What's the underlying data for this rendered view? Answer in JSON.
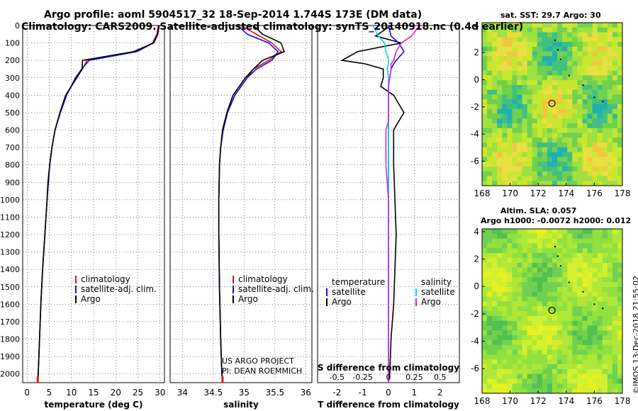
{
  "header": {
    "line1": "Argo profile: aoml 5904517_32 18-Sep-2014 1.744S 173E (DM data)",
    "line2": "Climatology: CARS2009. Satellite-adjusted climatology: synTS_20140918.nc (0.4d earlier)"
  },
  "credit": {
    "line1": "US ARGO PROJECT",
    "line2": "PI: DEAN ROEMMICH"
  },
  "timestamp": "©IMOS 13-Dec-2018 21:55:02",
  "colors": {
    "argo": "#000000",
    "climatology": "#e01010",
    "satellite": "#1010e0",
    "salinity_diff": "#00e0e0",
    "salinity_sat_diff": "#e020e0"
  },
  "chart_data": [
    {
      "type": "line",
      "id": "temperature",
      "xlabel": "temperature (deg C)",
      "ylim": [
        2050,
        0
      ],
      "xlim": [
        -1,
        31
      ],
      "xticks": [
        0,
        5,
        10,
        15,
        20,
        25,
        30
      ],
      "yticks": [
        0,
        100,
        200,
        300,
        400,
        500,
        600,
        700,
        800,
        900,
        1000,
        1100,
        1200,
        1300,
        1400,
        1500,
        1600,
        1700,
        1800,
        1900,
        2000
      ],
      "depth": [
        0,
        50,
        100,
        150,
        200,
        250,
        300,
        400,
        500,
        600,
        700,
        800,
        900,
        1000,
        1200,
        1400,
        1600,
        1800,
        2000,
        2050
      ],
      "series": [
        {
          "name": "climatology",
          "color": "#e01010",
          "values": [
            29.6,
            29.3,
            28.3,
            24.5,
            13.5,
            12.5,
            11.0,
            8.9,
            7.5,
            6.3,
            5.6,
            5.1,
            4.8,
            4.5,
            4.0,
            3.5,
            3.1,
            2.8,
            2.5,
            2.4
          ]
        },
        {
          "name": "satellite-adj. clim.",
          "color": "#1010e0",
          "values": [
            29.7,
            29.4,
            28.5,
            24.8,
            14.0,
            12.3,
            10.9,
            8.9,
            7.5,
            6.3,
            5.6,
            5.1,
            4.8,
            4.5,
            4.0,
            3.5,
            3.1,
            2.8,
            2.5,
            2.4
          ]
        },
        {
          "name": "Argo",
          "color": "#000000",
          "values": [
            29.8,
            29.5,
            28.6,
            24.0,
            12.5,
            12.4,
            11.2,
            8.7,
            7.4,
            6.3,
            5.6,
            5.1,
            4.7,
            4.5,
            4.0,
            3.5,
            3.1,
            2.8,
            2.5,
            2.4
          ]
        }
      ],
      "legend": [
        "climatology",
        "satellite-adj. clim.",
        "Argo"
      ]
    },
    {
      "type": "line",
      "id": "salinity",
      "xlabel": "salinity",
      "ylim": [
        2050,
        0
      ],
      "xlim": [
        33.8,
        36.1
      ],
      "xticks": [
        34,
        34.5,
        35,
        35.5,
        36
      ],
      "depth": [
        0,
        50,
        100,
        150,
        200,
        250,
        300,
        400,
        500,
        600,
        700,
        800,
        1000,
        1200,
        1500,
        1800,
        2000,
        2050
      ],
      "series": [
        {
          "name": "climatology",
          "color": "#e01010",
          "values": [
            34.95,
            35.2,
            35.45,
            35.6,
            35.4,
            35.15,
            35.05,
            34.85,
            34.73,
            34.66,
            34.62,
            34.6,
            34.59,
            34.59,
            34.6,
            34.62,
            34.64,
            34.65
          ]
        },
        {
          "name": "satellite-adj. clim.",
          "color": "#1010e0",
          "values": [
            34.9,
            35.05,
            35.4,
            35.55,
            35.45,
            35.2,
            35.05,
            34.85,
            34.73,
            34.66,
            34.62,
            34.6,
            34.59,
            34.59,
            34.6,
            34.62,
            34.64,
            34.65
          ]
        },
        {
          "name": "Argo",
          "color": "#000000",
          "values": [
            35.15,
            35.3,
            35.6,
            35.65,
            35.3,
            35.15,
            35.02,
            34.82,
            34.72,
            34.65,
            34.62,
            34.6,
            34.59,
            34.59,
            34.6,
            34.62,
            34.64,
            34.65
          ]
        }
      ],
      "legend": [
        "climatology",
        "satellite-adj. clim.",
        "Argo"
      ]
    },
    {
      "type": "line",
      "id": "differences",
      "xlabel": "T difference from climatology",
      "xlabel2": "S difference from climatology",
      "ylim": [
        2050,
        0
      ],
      "xlim": [
        -2.75,
        2.75
      ],
      "xticks": [
        -2,
        -1,
        0,
        1,
        2
      ],
      "xticks2": [
        -0.5,
        -0.25,
        0,
        0.25,
        0.5
      ],
      "xtick2_labels": [
        "-0.5",
        "-0.25",
        "0",
        "0.25",
        "0.5"
      ],
      "depth": [
        0,
        60,
        100,
        150,
        200,
        220,
        250,
        300,
        350,
        400,
        450,
        500,
        550,
        600,
        800,
        1000,
        1200,
        1400,
        1600,
        1800,
        2000,
        2050
      ],
      "series": [
        {
          "name": "temperature Argo",
          "color": "#000000",
          "values": [
            0.1,
            -0.5,
            0.5,
            -1.2,
            -1.8,
            -0.9,
            -0.2,
            -0.2,
            -0.3,
            0.2,
            0.4,
            0.6,
            0.4,
            0.2,
            0.2,
            0.25,
            0.3,
            0.25,
            0.2,
            0.1,
            0.05,
            0.0
          ]
        },
        {
          "name": "temperature satellite",
          "color": "#1010e0",
          "values": [
            0.0,
            0.1,
            0.4,
            0.6,
            0.3,
            0.2,
            0.1,
            0.05,
            0.0,
            0.0,
            0.0,
            0.0,
            0.0,
            0.0,
            0.0,
            0.0,
            0.0,
            0.0,
            0.0,
            0.0,
            0.0,
            0.0
          ]
        },
        {
          "name": "salinity satellite",
          "color": "#00e0e0",
          "values": [
            -0.6,
            -0.4,
            -0.15,
            -0.1,
            0.0,
            0.0,
            -0.05,
            0.0,
            0.0,
            0.0,
            0.0,
            0.0,
            0.0,
            0.0,
            0.0,
            0.0,
            0.0,
            0.0,
            0.0,
            0.0,
            0.0,
            0.0
          ]
        },
        {
          "name": "salinity Argo",
          "color": "#e020e0",
          "values": [
            1.2,
            0.9,
            0.5,
            0.3,
            0.2,
            0.1,
            0.1,
            0.05,
            0.0,
            0.0,
            0.0,
            0.0,
            0.0,
            -0.1,
            -0.1,
            0.0,
            0.0,
            0.0,
            0.0,
            0.0,
            0.0,
            0.0
          ]
        }
      ],
      "legend_left_title": "temperature",
      "legend_left": [
        "satellite",
        "Argo"
      ],
      "legend_right_title": "salinity",
      "legend_right": [
        "satellite",
        "Argo"
      ]
    },
    {
      "type": "heatmap",
      "id": "sst_map",
      "title": "sat. SST: 29.7 Argo: 30",
      "xlim": [
        168,
        178
      ],
      "ylim": [
        -7.8,
        4.2
      ],
      "xticks": [
        168,
        170,
        172,
        174,
        176,
        178
      ],
      "yticks": [
        -6,
        -4,
        -2,
        0,
        2,
        4
      ],
      "argo_location": [
        172.98,
        -1.744
      ]
    },
    {
      "type": "heatmap",
      "id": "sla_map",
      "title": "Altim. SLA: 0.057",
      "subtitle": "Argo h1000: -0.0072 h2000: 0.012",
      "xlim": [
        168,
        178
      ],
      "ylim": [
        -7.8,
        4.2
      ],
      "xticks": [
        168,
        170,
        172,
        174,
        176,
        178
      ],
      "yticks": [
        -6,
        -4,
        -2,
        0,
        2,
        4
      ],
      "argo_location": [
        172.98,
        -1.744
      ]
    }
  ]
}
